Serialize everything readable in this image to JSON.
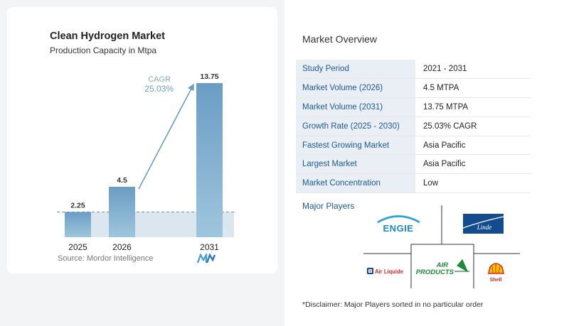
{
  "chart_data": {
    "type": "bar",
    "title": "Clean Hydrogen Market",
    "subtitle": "Production Capacity in Mtpa",
    "categories": [
      "2025",
      "2026",
      "2031"
    ],
    "values": [
      2.25,
      4.5,
      13.75
    ],
    "value_labels": [
      "2.25",
      "4.5",
      "13.75"
    ],
    "annotation": {
      "label": "CAGR",
      "value": "25.03%"
    },
    "ylim": [
      0,
      13.75
    ],
    "grid": false,
    "colors": {
      "bar_top": "#6b9dc4",
      "bar_bottom": "#9ec6dd",
      "band": "#dbe6ef",
      "arrow": "#6b9dc4",
      "text": "#333333"
    }
  },
  "source": "Source:  Mordor Intelligence",
  "overview": {
    "title": "Market Overview",
    "rows": [
      {
        "key": "Study Period",
        "value": "2021 - 2031"
      },
      {
        "key": "Market Volume (2026)",
        "value": "4.5 MTPA"
      },
      {
        "key": "Market Volume (2031)",
        "value": "13.75 MTPA"
      },
      {
        "key": "Growth Rate (2025 - 2030)",
        "value": "25.03% CAGR"
      },
      {
        "key": "Fastest Growing Market",
        "value": "Asia Pacific"
      },
      {
        "key": "Largest Market",
        "value": "Asia Pacific"
      },
      {
        "key": "Market Concentration",
        "value": "Low"
      }
    ]
  },
  "players": {
    "label": "Major Players",
    "logos": {
      "engie": "ENGIE",
      "linde": "Linde",
      "airliquide": "Air Liquide",
      "airproducts_1": "AIR",
      "airproducts_2": "PRODUCTS",
      "shell": "Shell"
    }
  },
  "disclaimer": "*Disclaimer: Major Players sorted in no particular order"
}
